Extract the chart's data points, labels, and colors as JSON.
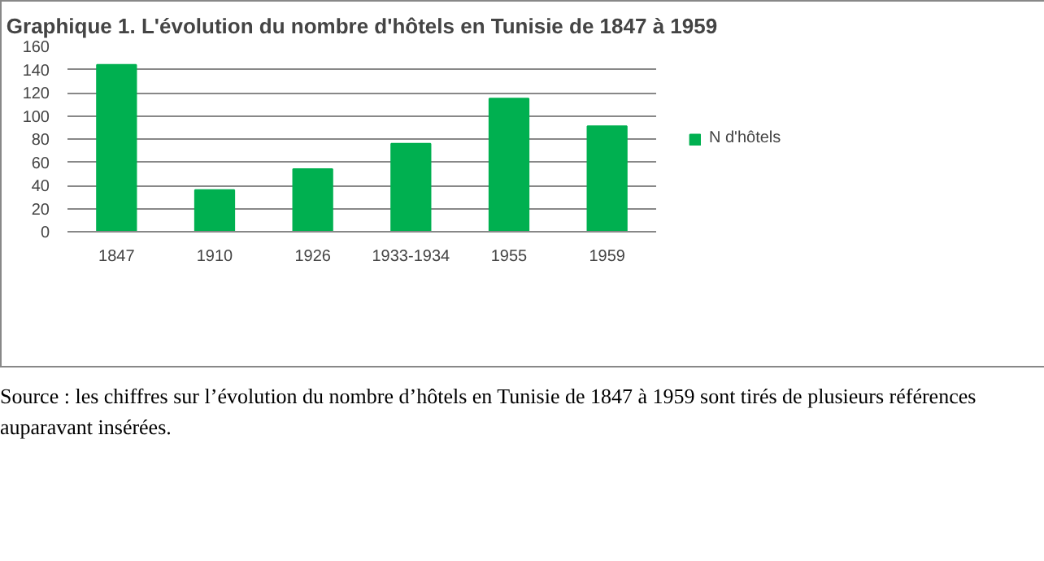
{
  "chart_data": {
    "type": "bar",
    "title": "Graphique 1. L'évolution du nombre d'hôtels en Tunisie de 1847 à 1959",
    "categories": [
      "1847",
      "1910",
      "1926",
      "1933-1934",
      "1955",
      "1959"
    ],
    "series": [
      {
        "name": "N d'hôtels",
        "color": "#00b050",
        "values": [
          144,
          36,
          54,
          76,
          115,
          91
        ]
      }
    ],
    "ylim": [
      0,
      160
    ],
    "yticks": [
      0,
      20,
      40,
      60,
      80,
      100,
      120,
      140,
      160
    ],
    "grid": "y",
    "legend": "right",
    "annotations": [
      "Source : les chiffres sur l’évolution du nombre d’hôtels en Tunisie de 1847 à 1959 sont tirés de plusieurs références auparavant insérées."
    ]
  }
}
